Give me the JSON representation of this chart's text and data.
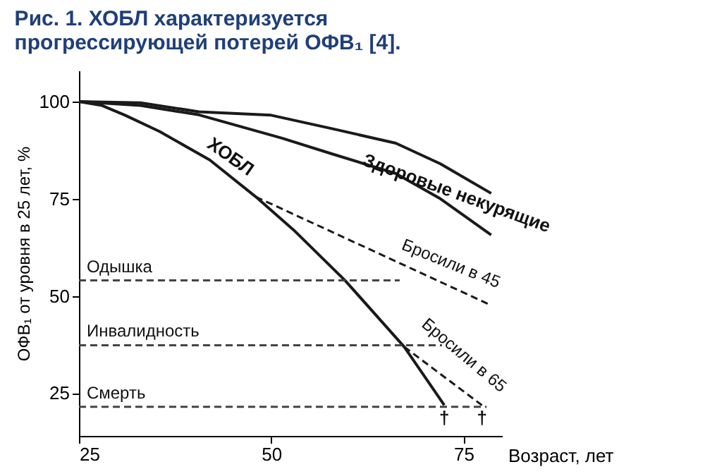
{
  "chart_data": {
    "type": "line",
    "title": "Рис. 1. ХОБЛ характеризуется прогрессирующей потерей ОФВ₁ [4].",
    "xlabel": "Возраст, лет",
    "ylabel": "ОФВ₁ от уровня в 25 лет, %",
    "xlim": [
      25,
      80
    ],
    "ylim": [
      14,
      108
    ],
    "xticks": [
      25,
      50,
      75
    ],
    "yticks": [
      25,
      50,
      75,
      100
    ],
    "grid": false,
    "marker": "none",
    "series": [
      {
        "color": "#1a1a1a",
        "line_style": "solid",
        "x": [
          25,
          33,
          40.6,
          50,
          58,
          66.2,
          72,
          78.6
        ],
        "values": [
          100,
          99.7,
          97.4,
          96.5,
          93,
          89.3,
          84,
          76.4
        ]
      },
      {
        "color": "#1a1a1a",
        "line_style": "solid",
        "x": [
          25,
          33,
          40.6,
          51.4,
          58,
          66.2,
          72,
          78.6
        ],
        "values": [
          100,
          99,
          96.6,
          90.6,
          86.5,
          81.5,
          75,
          65.7
        ]
      },
      {
        "color": "#1a1a1a",
        "line_style": "solid",
        "x": [
          25,
          28,
          31,
          35.5,
          42,
          48,
          52.9,
          59.6,
          67.3,
          72.5
        ],
        "values": [
          100,
          99,
          96.5,
          92.3,
          85,
          75.5,
          67,
          54,
          36.9,
          21.9
        ]
      },
      {
        "color": "#1a1a1a",
        "line_style": "dashed",
        "x": [
          48,
          78.6
        ],
        "values": [
          75.5,
          47.6
        ]
      },
      {
        "color": "#1a1a1a",
        "line_style": "dashed",
        "x": [
          67.3,
          77.4
        ],
        "values": [
          36.9,
          21.9
        ]
      },
      {
        "color": "#444444",
        "line_style": "dashed",
        "x": [
          25,
          66.7
        ],
        "values": [
          54,
          54
        ]
      },
      {
        "color": "#444444",
        "line_style": "dashed",
        "x": [
          25,
          72.2
        ],
        "values": [
          37.3,
          37.3
        ]
      },
      {
        "color": "#444444",
        "line_style": "dashed",
        "x": [
          25,
          78
        ],
        "values": [
          21.5,
          21.5
        ]
      }
    ],
    "annotations": [
      "ХОБЛ",
      "Здоровые некурящие",
      "Бросили в 45",
      "Бросили в 65",
      "Одышка",
      "Инвалидность",
      "Смерть",
      "†",
      "†"
    ]
  }
}
